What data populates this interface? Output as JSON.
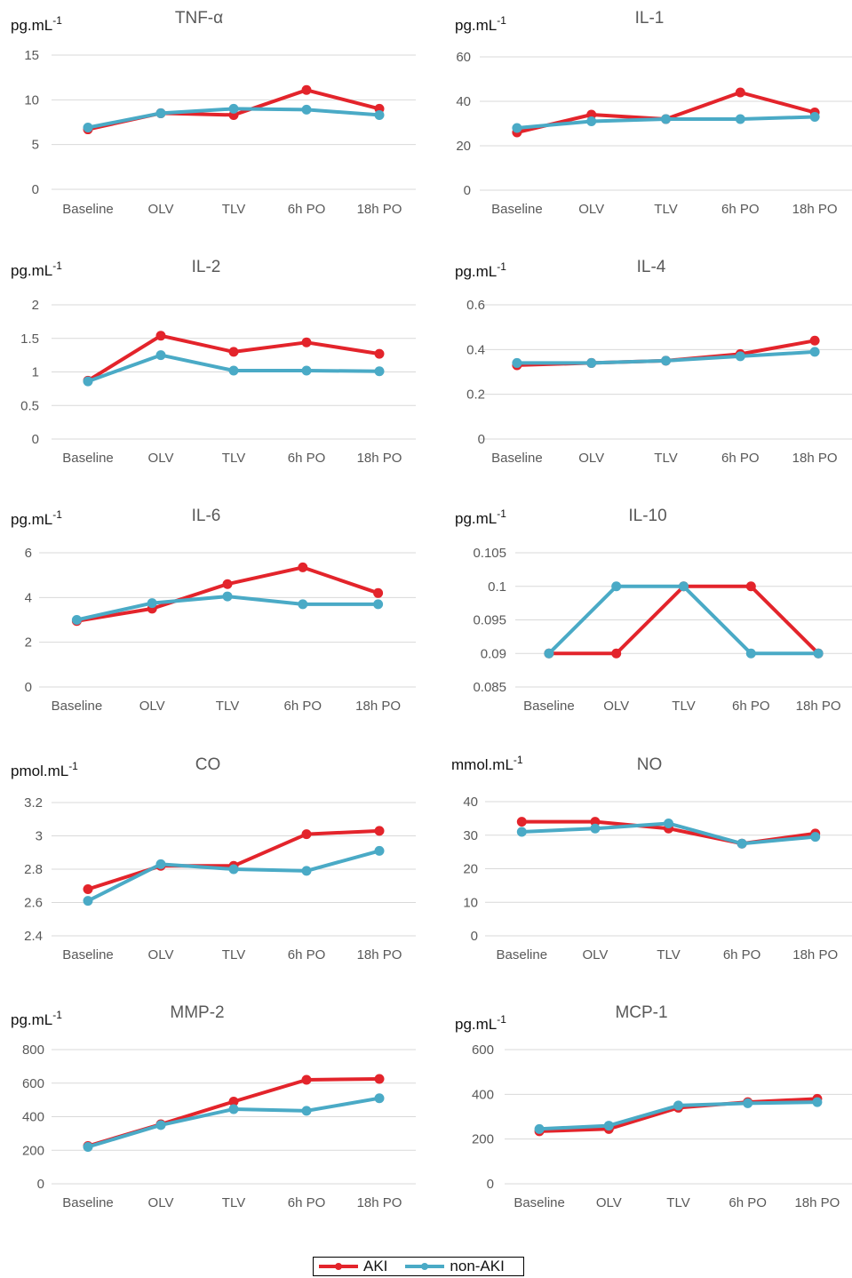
{
  "colors": {
    "AKI": "#e3242b",
    "non-AKI": "#4aaac6"
  },
  "legend": {
    "aki_label": "AKI",
    "nonaki_label": "non-AKI"
  },
  "chart_data": [
    {
      "type": "line",
      "title": "TNF-α",
      "ylabel": "pg.mL-1",
      "categories": [
        "Baseline",
        "OLV",
        "TLV",
        "6h PO",
        "18h PO"
      ],
      "ylim": [
        0,
        15
      ],
      "yticks": [
        "0",
        "5",
        "10",
        "15"
      ],
      "series": [
        {
          "name": "AKI",
          "values": [
            6.7,
            8.5,
            8.3,
            11.1,
            9.0
          ]
        },
        {
          "name": "non-AKI",
          "values": [
            6.9,
            8.5,
            9.0,
            8.9,
            8.3
          ]
        }
      ]
    },
    {
      "type": "line",
      "title": "IL-1",
      "ylabel": "pg.mL-1",
      "categories": [
        "Baseline",
        "OLV",
        "TLV",
        "6h PO",
        "18h PO"
      ],
      "ylim": [
        0,
        60
      ],
      "yticks": [
        "0",
        "20",
        "40",
        "60"
      ],
      "series": [
        {
          "name": "AKI",
          "values": [
            26,
            34,
            32,
            44,
            35
          ]
        },
        {
          "name": "non-AKI",
          "values": [
            28,
            31,
            32,
            32,
            33
          ]
        }
      ]
    },
    {
      "type": "line",
      "title": "IL-2",
      "ylabel": "pg.mL-1",
      "categories": [
        "Baseline",
        "OLV",
        "TLV",
        "6h PO",
        "18h PO"
      ],
      "ylim": [
        0,
        2
      ],
      "yticks": [
        "0",
        "0.5",
        "1",
        "1.5",
        "2"
      ],
      "series": [
        {
          "name": "AKI",
          "values": [
            0.87,
            1.54,
            1.3,
            1.44,
            1.27
          ]
        },
        {
          "name": "non-AKI",
          "values": [
            0.86,
            1.25,
            1.02,
            1.02,
            1.01
          ]
        }
      ]
    },
    {
      "type": "line",
      "title": "IL-4",
      "ylabel": "pg.mL-1",
      "categories": [
        "Baseline",
        "OLV",
        "TLV",
        "6h PO",
        "18h PO"
      ],
      "ylim": [
        0,
        0.6
      ],
      "yticks": [
        "0",
        "0.2",
        "0.4",
        "0.6"
      ],
      "series": [
        {
          "name": "AKI",
          "values": [
            0.33,
            0.34,
            0.35,
            0.38,
            0.44
          ]
        },
        {
          "name": "non-AKI",
          "values": [
            0.34,
            0.34,
            0.35,
            0.37,
            0.39
          ]
        }
      ]
    },
    {
      "type": "line",
      "title": "IL-6",
      "ylabel": "pg.mL-1",
      "categories": [
        "Baseline",
        "OLV",
        "TLV",
        "6h PO",
        "18h PO"
      ],
      "ylim": [
        0,
        6
      ],
      "yticks": [
        "0",
        "2",
        "4",
        "6"
      ],
      "series": [
        {
          "name": "AKI",
          "values": [
            2.95,
            3.5,
            4.6,
            5.35,
            4.2
          ]
        },
        {
          "name": "non-AKI",
          "values": [
            3.0,
            3.75,
            4.05,
            3.7,
            3.7
          ]
        }
      ]
    },
    {
      "type": "line",
      "title": "IL-10",
      "ylabel": "pg.mL-1",
      "categories": [
        "Baseline",
        "OLV",
        "TLV",
        "6h PO",
        "18h PO"
      ],
      "ylim": [
        0.085,
        0.105
      ],
      "yticks": [
        "0.085",
        "0.09",
        "0.095",
        "0.1",
        "0.105"
      ],
      "series": [
        {
          "name": "AKI",
          "values": [
            0.09,
            0.09,
            0.1,
            0.1,
            0.09
          ]
        },
        {
          "name": "non-AKI",
          "values": [
            0.09,
            0.1,
            0.1,
            0.09,
            0.09
          ]
        }
      ]
    },
    {
      "type": "line",
      "title": "CO",
      "ylabel": "pmol.mL-1",
      "categories": [
        "Baseline",
        "OLV",
        "TLV",
        "6h PO",
        "18h PO"
      ],
      "ylim": [
        2.4,
        3.2
      ],
      "yticks": [
        "2.4",
        "2.6",
        "2.8",
        "3",
        "3.2"
      ],
      "series": [
        {
          "name": "AKI",
          "values": [
            2.68,
            2.82,
            2.82,
            3.01,
            3.03
          ]
        },
        {
          "name": "non-AKI",
          "values": [
            2.61,
            2.83,
            2.8,
            2.79,
            2.91
          ]
        }
      ]
    },
    {
      "type": "line",
      "title": "NO",
      "ylabel": "mmol.mL-1",
      "categories": [
        "Baseline",
        "OLV",
        "TLV",
        "6h PO",
        "18h PO"
      ],
      "ylim": [
        0,
        40
      ],
      "yticks": [
        "0",
        "10",
        "20",
        "30",
        "40"
      ],
      "series": [
        {
          "name": "AKI",
          "values": [
            34,
            34,
            32,
            27.5,
            30.5
          ]
        },
        {
          "name": "non-AKI",
          "values": [
            31,
            32,
            33.5,
            27.5,
            29.5
          ]
        }
      ]
    },
    {
      "type": "line",
      "title": "MMP-2",
      "ylabel": "pg.mL-1",
      "categories": [
        "Baseline",
        "OLV",
        "TLV",
        "6h PO",
        "18h PO"
      ],
      "ylim": [
        0,
        800
      ],
      "yticks": [
        "0",
        "200",
        "400",
        "600",
        "800"
      ],
      "series": [
        {
          "name": "AKI",
          "values": [
            225,
            355,
            490,
            620,
            625
          ]
        },
        {
          "name": "non-AKI",
          "values": [
            220,
            350,
            445,
            435,
            510
          ]
        }
      ]
    },
    {
      "type": "line",
      "title": "MCP-1",
      "ylabel": "pg.mL-1",
      "categories": [
        "Baseline",
        "OLV",
        "TLV",
        "6h PO",
        "18h PO"
      ],
      "ylim": [
        0,
        600
      ],
      "yticks": [
        "0",
        "200",
        "400",
        "600"
      ],
      "series": [
        {
          "name": "AKI",
          "values": [
            235,
            245,
            340,
            365,
            380
          ]
        },
        {
          "name": "non-AKI",
          "values": [
            245,
            260,
            350,
            360,
            365
          ]
        }
      ]
    }
  ]
}
